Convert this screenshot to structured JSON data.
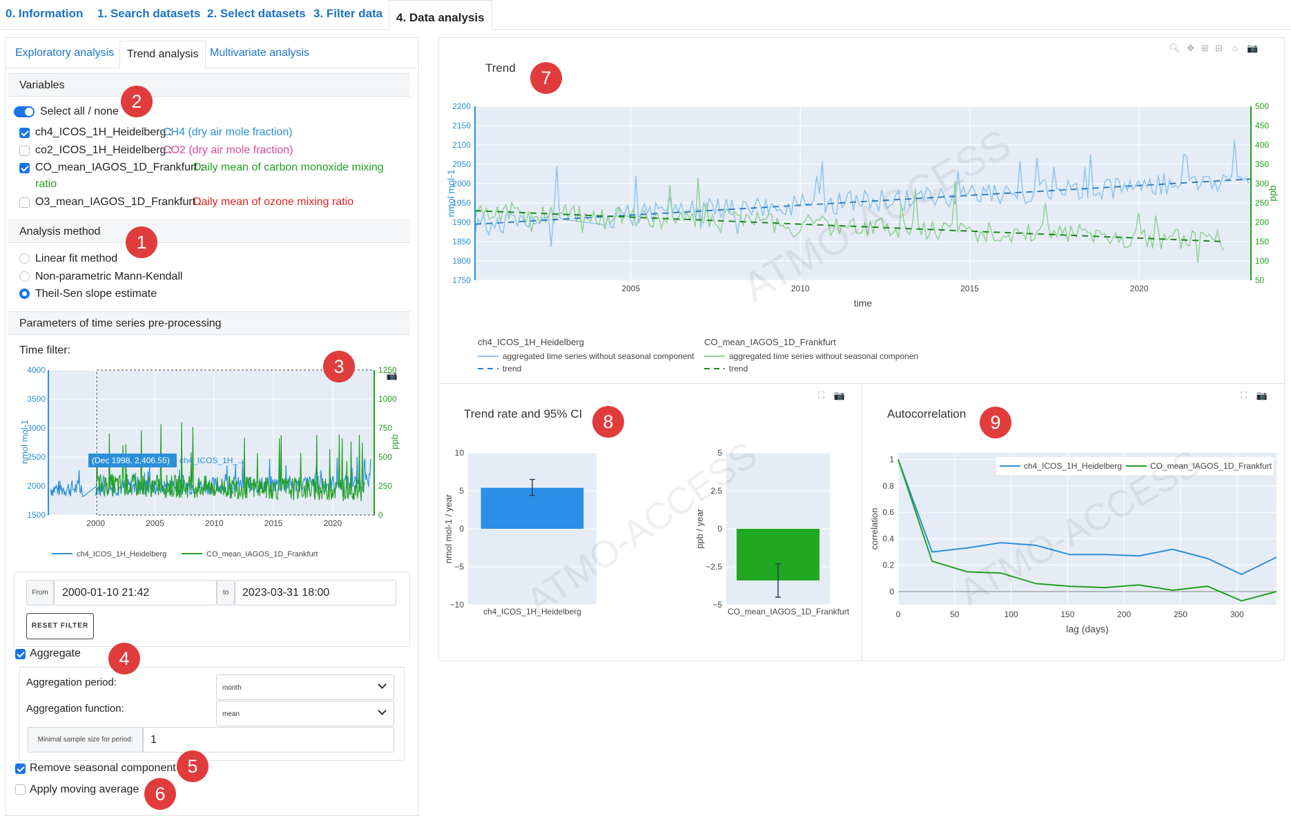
{
  "top_tabs": [
    "0. Information",
    "1. Search datasets",
    "2. Select datasets",
    "3. Filter data",
    "4. Data analysis"
  ],
  "sub_tabs": [
    "Exploratory analysis",
    "Trend analysis",
    "Multivariate analysis"
  ],
  "variables": {
    "header": "Variables",
    "select_all": "Select all / none",
    "items": [
      {
        "name": "ch4_ICOS_1H_Heidelberg :",
        "desc": "CH4 (dry air mole fraction)",
        "checked": true,
        "color": "#2a8fd8"
      },
      {
        "name": "co2_ICOS_1H_Heidelberg :",
        "desc": "CO2 (dry air mole fraction)",
        "checked": false,
        "color": "#d84a9a"
      },
      {
        "name": "CO_mean_IAGOS_1D_Frankfurt :",
        "desc": "Daily mean of carbon monoxide mixing",
        "desc2": "ratio",
        "checked": true,
        "color": "#22a022"
      },
      {
        "name": "O3_mean_IAGOS_1D_Frankfurt :",
        "desc": "Daily mean of ozone mixing ratio",
        "checked": false,
        "color": "#e02020"
      }
    ]
  },
  "analysis_method": {
    "header": "Analysis method",
    "options": [
      "Linear fit method",
      "Non-parametric Mann-Kendall",
      "Theil-Sen slope estimate"
    ],
    "selected": 2
  },
  "preprocessing": {
    "header": "Parameters of time series pre-processing",
    "time_filter_label": "Time filter:",
    "tooltip": "(Dec 1998, 2,406.55)",
    "tooltip_series": "ch4_ICOS_1H_...",
    "mini_y_left": [
      "4000",
      "3500",
      "3000",
      "2500",
      "2000",
      "1500"
    ],
    "mini_y_right": [
      "1250",
      "1000",
      "750",
      "500",
      "250",
      "0"
    ],
    "mini_x": [
      "2000",
      "2005",
      "2010",
      "2015",
      "2020"
    ],
    "mini_ylabel_left": "nmol mol-1",
    "mini_ylabel_right": "ppb",
    "legend": [
      "ch4_ICOS_1H_Heidelberg",
      "CO_mean_IAGOS_1D_Frankfurt"
    ],
    "from_label": "From",
    "from_value": "2000-01-10 21:42",
    "to_label": "to",
    "to_value": "2023-03-31 18:00",
    "reset_label": "RESET FILTER",
    "aggregate_label": "Aggregate",
    "aggregate_checked": true,
    "agg_period_label": "Aggregation period:",
    "agg_period_value": "month",
    "agg_function_label": "Aggregation function:",
    "agg_function_value": "mean",
    "min_sample_label": "Minimal sample size for period:",
    "min_sample_value": "1",
    "remove_seasonal_label": "Remove seasonal component",
    "remove_seasonal_checked": true,
    "moving_average_label": "Apply moving average",
    "moving_average_checked": false
  },
  "badges": [
    "1",
    "2",
    "3",
    "4",
    "5",
    "6",
    "7",
    "8",
    "9"
  ],
  "watermark": "ATMO-ACCESS",
  "trend_plot": {
    "title": "Trend",
    "y_left_ticks": [
      "2200",
      "2150",
      "2100",
      "2050",
      "2000",
      "1950",
      "1900",
      "1850",
      "1800",
      "1750"
    ],
    "y_right_ticks": [
      "500",
      "450",
      "400",
      "350",
      "300",
      "250",
      "200",
      "150",
      "100",
      "50"
    ],
    "x_ticks": [
      "2005",
      "2010",
      "2015",
      "2020"
    ],
    "xlabel": "time",
    "ylabel_left": "nmol mol-1",
    "ylabel_right": "ppb",
    "legend": {
      "group1": "ch4_ICOS_1H_Heidelberg",
      "group1_line": "aggregated time series without seasonal component",
      "group1_trend": "trend",
      "group2": "CO_mean_IAGOS_1D_Frankfurt",
      "group2_line": "aggregated time series without seasonal componen",
      "group2_trend": "trend"
    }
  },
  "rate_plot": {
    "title": "Trend rate and 95% CI",
    "left_ticks": [
      "10",
      "5",
      "0",
      "−5",
      "−10"
    ],
    "left_ylabel": "nmol mol-1 / year",
    "left_xlabel": "ch4_ICOS_1H_Heidelberg",
    "right_ticks": [
      "5",
      "2.5",
      "0",
      "−2.5",
      "−5"
    ],
    "right_ylabel": "ppb / year",
    "right_xlabel": "CO_mean_IAGOS_1D_Frankfurt"
  },
  "autocorr_plot": {
    "title": "Autocorrelation",
    "y_ticks": [
      "1",
      "0.8",
      "0.6",
      "0.4",
      "0.2",
      "0"
    ],
    "x_ticks": [
      "0",
      "50",
      "100",
      "150",
      "200",
      "250",
      "300"
    ],
    "xlabel": "lag (days)",
    "ylabel": "correlation",
    "legend": [
      "ch4_ICOS_1H_Heidelberg",
      "CO_mean_IAGOS_1D_Frankfurt"
    ]
  },
  "chart_data": [
    {
      "type": "line",
      "title": "Trend",
      "xlabel": "time",
      "xlim": [
        2000.4,
        2023.3
      ],
      "series": [
        {
          "name": "ch4_ICOS_1H_Heidelberg",
          "axis": "left",
          "ylim": [
            1750,
            2200
          ],
          "trend_start": [
            2000.4,
            1895
          ],
          "trend_end": [
            2023.3,
            2012
          ]
        },
        {
          "name": "CO_mean_IAGOS_1D_Frankfurt",
          "axis": "right",
          "ylim": [
            50,
            500
          ],
          "trend_start": [
            2000.4,
            230
          ],
          "trend_end": [
            2022.5,
            150
          ]
        }
      ]
    },
    {
      "type": "bar",
      "title": "Trend rate and 95% CI",
      "series": [
        {
          "name": "ch4_ICOS_1H_Heidelberg",
          "value": 5.4,
          "ci": [
            4.4,
            6.5
          ],
          "ylim": [
            -10,
            10
          ]
        },
        {
          "name": "CO_mean_IAGOS_1D_Frankfurt",
          "value": -3.4,
          "ci": [
            -4.5,
            -2.3
          ],
          "ylim": [
            -5,
            5
          ]
        }
      ]
    },
    {
      "type": "line",
      "title": "Autocorrelation",
      "xlabel": "lag (days)",
      "ylabel": "correlation",
      "xlim": [
        0,
        335
      ],
      "ylim": [
        -0.1,
        1.05
      ],
      "x": [
        0,
        30,
        61,
        91,
        122,
        152,
        183,
        213,
        243,
        274,
        304,
        335
      ],
      "series": [
        {
          "name": "ch4_ICOS_1H_Heidelberg",
          "values": [
            1.0,
            0.3,
            0.33,
            0.37,
            0.35,
            0.28,
            0.28,
            0.27,
            0.32,
            0.25,
            0.13,
            0.26
          ]
        },
        {
          "name": "CO_mean_IAGOS_1D_Frankfurt",
          "values": [
            1.0,
            0.23,
            0.15,
            0.14,
            0.06,
            0.04,
            0.03,
            0.05,
            0.01,
            0.04,
            -0.07,
            0.0
          ]
        }
      ]
    }
  ]
}
